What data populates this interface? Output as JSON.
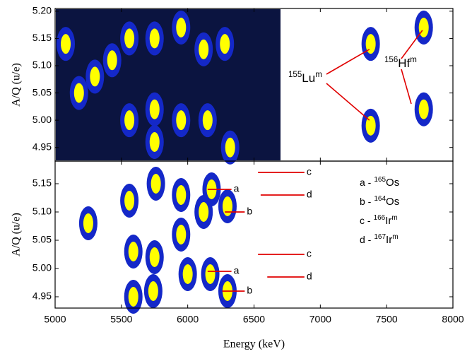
{
  "chart_data": [
    {
      "type": "scatter",
      "ylabel": "A/Q (u/e)",
      "xlim": [
        5000,
        8000
      ],
      "xticks": [
        5000,
        5500,
        6000,
        6500,
        7000,
        7500,
        8000
      ],
      "ylim": [
        4.925,
        5.205
      ],
      "yticks": [
        4.95,
        {
          "value": 5,
          "label": "5.00"
        },
        5.05,
        {
          "value": 5.1,
          "label": "5.10"
        },
        5.15,
        {
          "value": 5.2,
          "label": "5.20"
        }
      ],
      "color": "#1428c8",
      "core_color": "#ffff00",
      "x": [
        5080,
        5180,
        5300,
        5430,
        5560,
        5560,
        5750,
        5750,
        5750,
        5950,
        5950,
        6120,
        6150,
        6280,
        6320,
        7380,
        7380,
        7780,
        7780
      ],
      "y": [
        5.14,
        5.05,
        5.08,
        5.11,
        5.15,
        5.0,
        5.15,
        5.02,
        4.96,
        5.17,
        5.0,
        5.13,
        5.0,
        5.14,
        4.95,
        5.14,
        4.99,
        5.17,
        5.02
      ],
      "annotations": [
        {
          "mass": "155",
          "symbol": "Lu",
          "state": "m"
        },
        {
          "mass": "156",
          "symbol": "Hf",
          "state": "m"
        }
      ]
    },
    {
      "type": "scatter",
      "ylabel": "A/Q (u/e)",
      "xlabel": "Energy (keV)",
      "xlim": [
        5000,
        8000
      ],
      "xticks": [
        5000,
        5500,
        6000,
        6500,
        7000,
        7500,
        8000
      ],
      "ylim": [
        4.93,
        5.19
      ],
      "yticks": [
        4.95,
        {
          "value": 5,
          "label": "5.00"
        },
        5.05,
        {
          "value": 5.1,
          "label": "5.10"
        },
        5.15
      ],
      "color": "#1428c8",
      "core_color": "#ffff00",
      "x": [
        5250,
        5560,
        5590,
        5590,
        5760,
        5750,
        5740,
        5950,
        5950,
        6000,
        6120,
        6180,
        6170,
        6300,
        6300
      ],
      "y": [
        5.08,
        5.12,
        5.03,
        4.95,
        5.15,
        5.02,
        4.96,
        5.13,
        5.06,
        4.99,
        5.1,
        5.14,
        4.99,
        5.11,
        4.96
      ],
      "markers": [
        "c",
        "a",
        "d",
        "b",
        "c",
        "a",
        "d",
        "b"
      ],
      "legend_entries": [
        {
          "key": "a -",
          "mass": "165",
          "symbol": "Os"
        },
        {
          "key": "b -",
          "mass": "164",
          "symbol": "Os"
        },
        {
          "key": "c -",
          "mass": "166",
          "symbol": "Ir",
          "state": "m"
        },
        {
          "key": "d -",
          "mass": "167",
          "symbol": "Ir",
          "state": "m"
        }
      ]
    }
  ]
}
